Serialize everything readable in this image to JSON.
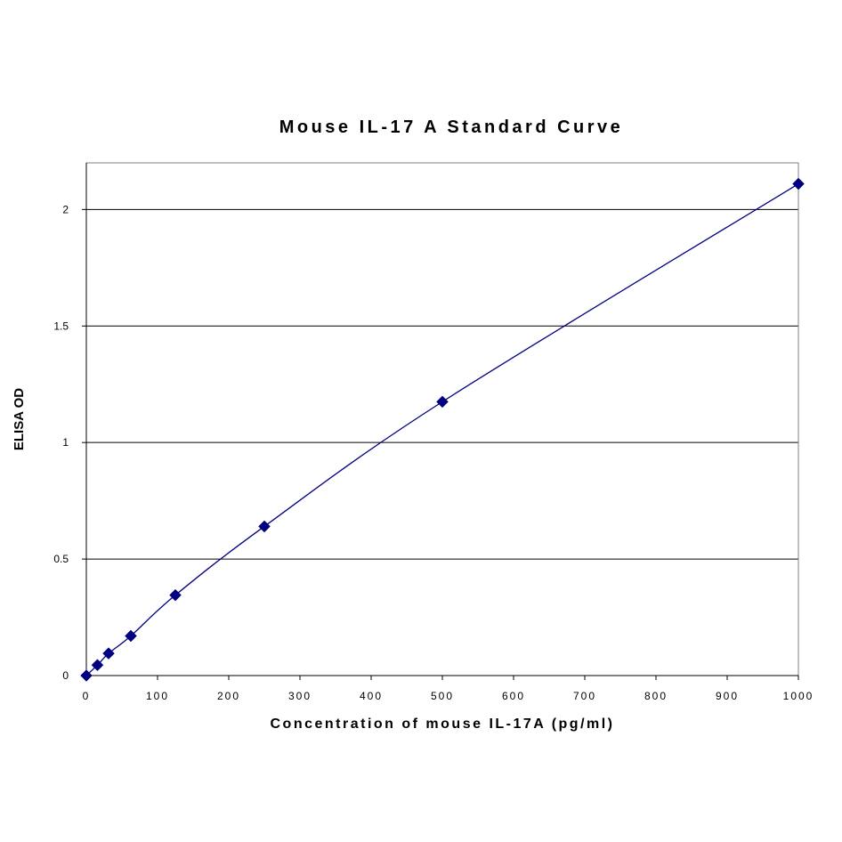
{
  "chart_data": {
    "type": "scatter",
    "title": "Mouse IL-17 A Standard Curve",
    "xlabel": "Concentration of mouse IL-17A  (pg/ml)",
    "ylabel": "ELISA OD",
    "xlim": [
      0,
      1000
    ],
    "ylim": [
      0,
      2.2
    ],
    "xticks": [
      "0",
      "100",
      "200",
      "300",
      "400",
      "500",
      "600",
      "700",
      "800",
      "900",
      "1000"
    ],
    "yticks": [
      "0",
      "0.5",
      "1",
      "1.5",
      "2"
    ],
    "grid": "horizontal",
    "legend": "none",
    "series": [
      {
        "x": [
          0,
          15.6,
          31.25,
          62.5,
          125,
          250,
          500,
          1000
        ],
        "y": [
          0.0,
          0.045,
          0.095,
          0.17,
          0.345,
          0.64,
          1.175,
          2.11
        ],
        "color": "#000080",
        "marker": "diamond",
        "line": "smooth"
      }
    ]
  }
}
